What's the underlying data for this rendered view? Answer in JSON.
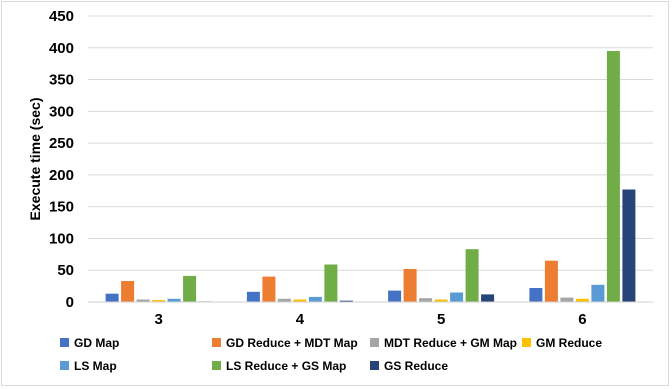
{
  "chart_data": {
    "type": "bar",
    "title": "",
    "xlabel": "",
    "ylabel": "Execute time  (sec)",
    "ylim": [
      0,
      450
    ],
    "yticks": [
      0,
      50,
      100,
      150,
      200,
      250,
      300,
      350,
      400,
      450
    ],
    "grid": true,
    "legend_position": "bottom",
    "categories": [
      "3",
      "4",
      "5",
      "6"
    ],
    "series": [
      {
        "name": "GD Map",
        "color": "#4472C4",
        "values": [
          13,
          16,
          18,
          22
        ]
      },
      {
        "name": "GD Reduce + MDT Map",
        "color": "#ED7D31",
        "values": [
          33,
          40,
          52,
          65
        ]
      },
      {
        "name": "MDT Reduce + GM Map",
        "color": "#A5A5A5",
        "values": [
          4,
          5,
          6,
          7
        ]
      },
      {
        "name": "GM Reduce",
        "color": "#FFC000",
        "values": [
          3,
          4,
          4,
          5
        ]
      },
      {
        "name": "LS Map",
        "color": "#5B9BD5",
        "values": [
          5,
          8,
          15,
          27
        ]
      },
      {
        "name": "LS Reduce + GS Map",
        "color": "#70AD47",
        "values": [
          41,
          59,
          83,
          395
        ]
      },
      {
        "name": "GS Reduce",
        "color": "#264478",
        "values": [
          1,
          2,
          12,
          177
        ]
      }
    ]
  }
}
